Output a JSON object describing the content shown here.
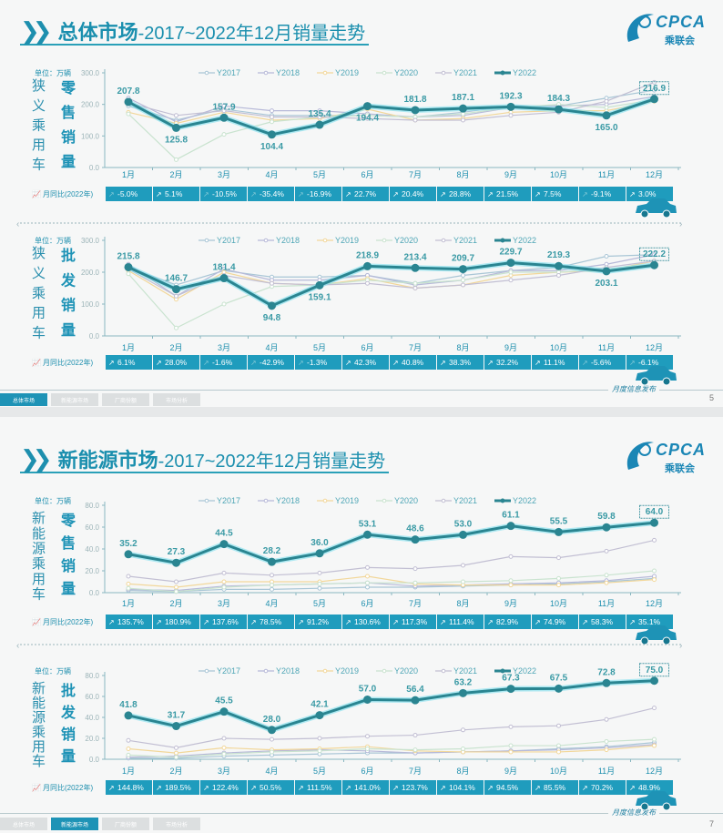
{
  "pages": [
    {
      "title_bold": "总体市场",
      "title_rest": "-2017~2022年12月销量走势",
      "logo_text": "CPCA",
      "logo_sub": "乘联会",
      "tagline": "月度信息发布",
      "page_number": "5",
      "tabs": [
        "总体市场",
        "新能源市场",
        "厂商份额",
        "市场分析"
      ],
      "active_tab": 0
    },
    {
      "title_bold": "新能源市场",
      "title_rest": "-2017~2022年12月销量走势",
      "logo_text": "CPCA",
      "logo_sub": "乘联会",
      "tagline": "月度信息发布",
      "page_number": "7",
      "tabs": [
        "总体市场",
        "新能源市场",
        "厂商份额",
        "市场分析"
      ],
      "active_tab": 1
    }
  ],
  "unit_label": "单位：万辆",
  "yoy_label": "月同比(2022年)",
  "colors": {
    "accent": "#1e93b6",
    "y2022": "#2a8591",
    "glow": "#7fe0ee",
    "Y2017": "#a9c6d6",
    "Y2018": "#b7b9d8",
    "Y2019": "#f2d79a",
    "Y2020": "#c9e3cf",
    "Y2021": "#c2bfd3",
    "yoy_cell": "#1f9cbd"
  },
  "chart_data": [
    {
      "type": "line",
      "category_label": "狭义乘用车",
      "metric_label": "零售销量",
      "ylim": [
        0,
        300
      ],
      "yticks": [
        0,
        100,
        200,
        300
      ],
      "grid": false,
      "legend": "top",
      "categories": [
        "1月",
        "2月",
        "3月",
        "4月",
        "5月",
        "6月",
        "7月",
        "8月",
        "9月",
        "10月",
        "11月",
        "12月"
      ],
      "series": [
        {
          "name": "Y2017",
          "values": [
            195,
            150,
            185,
            165,
            165,
            165,
            160,
            175,
            195,
            195,
            220,
            245
          ]
        },
        {
          "name": "Y2018",
          "values": [
            220,
            145,
            195,
            180,
            180,
            170,
            160,
            165,
            190,
            195,
            200,
            225
          ]
        },
        {
          "name": "Y2019",
          "values": [
            175,
            140,
            175,
            150,
            155,
            185,
            150,
            155,
            175,
            180,
            180,
            210
          ]
        },
        {
          "name": "Y2020",
          "values": [
            170,
            25,
            105,
            145,
            160,
            165,
            160,
            170,
            190,
            200,
            190,
            215
          ]
        },
        {
          "name": "Y2021",
          "values": [
            205,
            165,
            180,
            160,
            160,
            155,
            150,
            150,
            165,
            175,
            210,
            270
          ]
        },
        {
          "name": "Y2022",
          "values": [
            207.8,
            125.8,
            157.9,
            104.4,
            135.4,
            194.4,
            181.8,
            187.1,
            192.3,
            184.3,
            165.0,
            216.9
          ]
        }
      ],
      "yoy": [
        "-5.0%",
        "5.1%",
        "-10.5%",
        "-35.4%",
        "-16.9%",
        "22.7%",
        "20.4%",
        "28.8%",
        "21.5%",
        "7.5%",
        "-9.1%",
        "3.0%"
      ]
    },
    {
      "type": "line",
      "category_label": "狭义乘用车",
      "metric_label": "批发销量",
      "ylim": [
        0,
        300
      ],
      "yticks": [
        0,
        100,
        200,
        300
      ],
      "grid": false,
      "legend": "top",
      "categories": [
        "1月",
        "2月",
        "3月",
        "4月",
        "5月",
        "6月",
        "7月",
        "8月",
        "9月",
        "10月",
        "11月",
        "12月"
      ],
      "series": [
        {
          "name": "Y2017",
          "values": [
            215,
            160,
            205,
            185,
            185,
            190,
            165,
            190,
            205,
            215,
            250,
            255
          ]
        },
        {
          "name": "Y2018",
          "values": [
            225,
            125,
            210,
            175,
            175,
            190,
            160,
            175,
            205,
            205,
            225,
            255
          ]
        },
        {
          "name": "Y2019",
          "values": [
            205,
            115,
            200,
            165,
            160,
            180,
            150,
            160,
            190,
            200,
            205,
            235
          ]
        },
        {
          "name": "Y2020",
          "values": [
            195,
            25,
            100,
            155,
            160,
            175,
            165,
            175,
            200,
            200,
            210,
            225
          ]
        },
        {
          "name": "Y2021",
          "values": [
            210,
            125,
            190,
            165,
            160,
            165,
            150,
            160,
            175,
            190,
            215,
            235
          ]
        },
        {
          "name": "Y2022",
          "values": [
            215.8,
            146.7,
            181.4,
            94.8,
            159.1,
            218.9,
            213.4,
            209.7,
            229.7,
            219.3,
            203.1,
            222.2
          ]
        }
      ],
      "yoy": [
        "6.1%",
        "28.0%",
        "-1.6%",
        "-42.9%",
        "-1.3%",
        "42.3%",
        "40.8%",
        "38.3%",
        "32.2%",
        "11.1%",
        "-5.6%",
        "-6.1%"
      ]
    },
    {
      "type": "line",
      "category_label": "新能源乘用车",
      "metric_label": "零售销量",
      "ylim": [
        0,
        80
      ],
      "yticks": [
        0,
        20,
        40,
        60,
        80
      ],
      "grid": false,
      "legend": "top",
      "categories": [
        "1月",
        "2月",
        "3月",
        "4月",
        "5月",
        "6月",
        "7月",
        "8月",
        "9月",
        "10月",
        "11月",
        "12月"
      ],
      "series": [
        {
          "name": "Y2017",
          "values": [
            2,
            1,
            3,
            3,
            4,
            5,
            5,
            6,
            7,
            8,
            10,
            13
          ]
        },
        {
          "name": "Y2018",
          "values": [
            3,
            2,
            6,
            7,
            8,
            9,
            6,
            7,
            8,
            9,
            11,
            15
          ]
        },
        {
          "name": "Y2019",
          "values": [
            8,
            5,
            10,
            10,
            10,
            15,
            8,
            7,
            7,
            7,
            9,
            12
          ]
        },
        {
          "name": "Y2020",
          "values": [
            4,
            1,
            5,
            7,
            8,
            9,
            9,
            10,
            11,
            13,
            16,
            20
          ]
        },
        {
          "name": "Y2021",
          "values": [
            15,
            10,
            18,
            16,
            18,
            23,
            22,
            25,
            33,
            32,
            38,
            48
          ]
        },
        {
          "name": "Y2022",
          "values": [
            35.2,
            27.3,
            44.5,
            28.2,
            36.0,
            53.1,
            48.6,
            53.0,
            61.1,
            55.5,
            59.8,
            64.0
          ]
        }
      ],
      "yoy": [
        "135.7%",
        "180.9%",
        "137.6%",
        "78.5%",
        "91.2%",
        "130.6%",
        "117.3%",
        "111.4%",
        "82.9%",
        "74.9%",
        "58.3%",
        "35.1%"
      ]
    },
    {
      "type": "line",
      "category_label": "新能源乘用车",
      "metric_label": "批发销量",
      "ylim": [
        0,
        80
      ],
      "yticks": [
        0,
        20,
        40,
        60,
        80
      ],
      "grid": false,
      "legend": "top",
      "categories": [
        "1月",
        "2月",
        "3月",
        "4月",
        "5月",
        "6月",
        "7月",
        "8月",
        "9月",
        "10月",
        "11月",
        "12月"
      ],
      "series": [
        {
          "name": "Y2017",
          "values": [
            1,
            1,
            3,
            4,
            5,
            6,
            6,
            7,
            8,
            10,
            12,
            16
          ]
        },
        {
          "name": "Y2018",
          "values": [
            2,
            3,
            6,
            8,
            9,
            8,
            6,
            7,
            8,
            9,
            11,
            14
          ]
        },
        {
          "name": "Y2019",
          "values": [
            10,
            6,
            11,
            9,
            10,
            12,
            8,
            7,
            7,
            7,
            9,
            13
          ]
        },
        {
          "name": "Y2020",
          "values": [
            4,
            2,
            5,
            7,
            8,
            10,
            9,
            10,
            13,
            13,
            17,
            19
          ]
        },
        {
          "name": "Y2021",
          "values": [
            18,
            11,
            20,
            19,
            20,
            22,
            23,
            28,
            31,
            32,
            38,
            49
          ]
        },
        {
          "name": "Y2022",
          "values": [
            41.8,
            31.7,
            45.5,
            28.0,
            42.1,
            57.0,
            56.4,
            63.2,
            67.3,
            67.5,
            72.8,
            75.0
          ]
        }
      ],
      "yoy": [
        "144.8%",
        "189.5%",
        "122.4%",
        "50.5%",
        "111.5%",
        "141.0%",
        "123.7%",
        "104.1%",
        "94.5%",
        "85.5%",
        "70.2%",
        "48.9%"
      ]
    }
  ]
}
